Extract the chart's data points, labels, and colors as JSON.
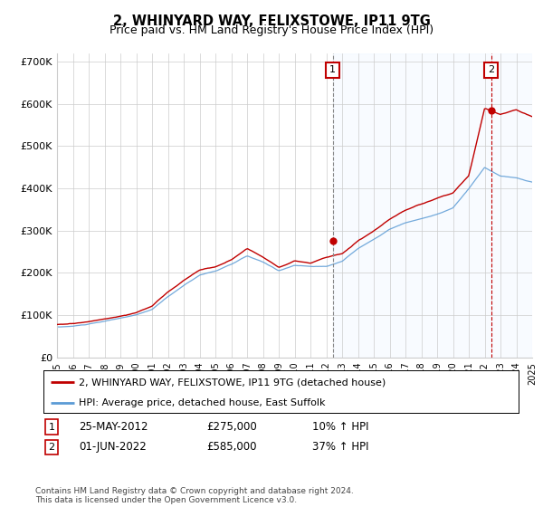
{
  "title": "2, WHINYARD WAY, FELIXSTOWE, IP11 9TG",
  "subtitle": "Price paid vs. HM Land Registry's House Price Index (HPI)",
  "legend_line1": "2, WHINYARD WAY, FELIXSTOWE, IP11 9TG (detached house)",
  "legend_line2": "HPI: Average price, detached house, East Suffolk",
  "annotation1_label": "1",
  "annotation1_date": "25-MAY-2012",
  "annotation1_price": "£275,000",
  "annotation1_hpi": "10% ↑ HPI",
  "annotation2_label": "2",
  "annotation2_date": "01-JUN-2022",
  "annotation2_price": "£585,000",
  "annotation2_hpi": "37% ↑ HPI",
  "footer": "Contains HM Land Registry data © Crown copyright and database right 2024.\nThis data is licensed under the Open Government Licence v3.0.",
  "hpi_color": "#5b9bd5",
  "price_color": "#c00000",
  "vline1_color": "#a0a0a0",
  "vline2_color": "#c00000",
  "annotation_box_color": "#c00000",
  "bg_color": "#ffffff",
  "plot_bg_color": "#ffffff",
  "shade_color": "#ddeeff",
  "grid_color": "#cccccc",
  "ylim": [
    0,
    720000
  ],
  "yticks": [
    0,
    100000,
    200000,
    300000,
    400000,
    500000,
    600000,
    700000
  ],
  "year_start": 1995,
  "year_end": 2025,
  "sale1_year": 2012.4,
  "sale1_price": 275000,
  "sale2_year": 2022.4,
  "sale2_price": 585000
}
